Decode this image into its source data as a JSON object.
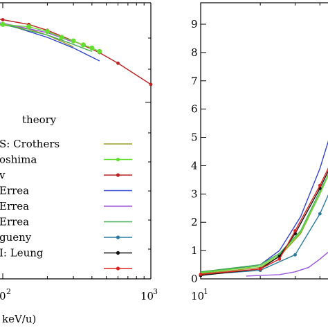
{
  "chart_data": [
    {
      "type": "line",
      "panel": "left",
      "title": "",
      "xlabel": "keV/u)",
      "x_scale": "log",
      "xlim": [
        60,
        1000
      ],
      "ylim": [
        0,
        1
      ],
      "x_ticklabels": [
        "0",
        "2",
        "10",
        "3"
      ],
      "legend": {
        "title": "theory",
        "placement": "center-left",
        "entries": [
          {
            "label": "S: Crothers",
            "color": "#9a9a2a",
            "marker": false
          },
          {
            "label": "oshima",
            "color": "#66dd33",
            "marker": true
          },
          {
            "label": "v",
            "color": "#bb2222",
            "marker": true
          },
          {
            "label": "Errea",
            "color": "#3344cc",
            "marker": false
          },
          {
            "label": "Errea",
            "color": "#9955dd",
            "marker": false
          },
          {
            "label": "Errea",
            "color": "#44aa55",
            "marker": false
          },
          {
            "label": "gueny",
            "color": "#2a7aa0",
            "marker": true
          },
          {
            "label": "I: Leung",
            "color": "#111111",
            "marker": true
          },
          {
            "label": "",
            "color": "#dd2222",
            "marker": true
          }
        ]
      },
      "series": [
        {
          "color": "#9a9a2a",
          "marker": false,
          "x": [
            60,
            80,
            100,
            150,
            200,
            300
          ],
          "y": [
            0.94,
            0.953,
            0.953,
            0.935,
            0.91,
            0.86
          ]
        },
        {
          "color": "#3344cc",
          "marker": false,
          "x": [
            60,
            100,
            200,
            300,
            450
          ],
          "y": [
            0.975,
            0.96,
            0.9,
            0.855,
            0.8
          ]
        },
        {
          "color": "#9955dd",
          "marker": false,
          "x": [
            60,
            100,
            200,
            300
          ],
          "y": [
            0.97,
            0.96,
            0.92,
            0.88
          ]
        },
        {
          "color": "#44aa55",
          "marker": false,
          "x": [
            60,
            100,
            200,
            300,
            400
          ],
          "y": [
            0.965,
            0.955,
            0.91,
            0.87,
            0.84
          ]
        },
        {
          "color": "#bb2222",
          "marker": true,
          "x": [
            70,
            100,
            150,
            200,
            300,
            450,
            600,
            1000
          ],
          "y": [
            0.985,
            0.975,
            0.955,
            0.93,
            0.885,
            0.835,
            0.79,
            0.7
          ]
        },
        {
          "color": "#66dd33",
          "marker": true,
          "x": [
            70,
            100,
            150,
            200,
            250,
            300,
            350,
            400,
            450
          ],
          "y": [
            0.96,
            0.955,
            0.945,
            0.925,
            0.9,
            0.885,
            0.868,
            0.855,
            0.84
          ]
        }
      ]
    },
    {
      "type": "line",
      "panel": "right",
      "title": "",
      "xlabel": "",
      "x_scale": "log",
      "xlim": [
        10,
        50
      ],
      "ylim": [
        0,
        9.5
      ],
      "y_ticks": [
        0,
        1,
        2,
        3,
        4,
        5,
        6,
        7,
        8,
        9
      ],
      "x_ticklabels": [
        "10",
        "1"
      ],
      "series": [
        {
          "color": "#3344cc",
          "marker": false,
          "x": [
            10,
            20,
            25,
            32,
            40,
            50
          ],
          "y": [
            0.2,
            0.5,
            1.0,
            2.2,
            3.9,
            6.1
          ]
        },
        {
          "color": "#9955dd",
          "marker": false,
          "x": [
            17,
            25,
            30,
            35,
            40,
            45,
            50
          ],
          "y": [
            0.1,
            0.15,
            0.25,
            0.4,
            0.7,
            1.0,
            1.45
          ]
        },
        {
          "color": "#9a9a2a",
          "marker": false,
          "x": [
            10,
            20,
            25,
            32,
            40,
            50
          ],
          "y": [
            0.18,
            0.4,
            0.8,
            1.6,
            3.0,
            4.6
          ]
        },
        {
          "color": "#44aa55",
          "marker": false,
          "x": [
            10,
            20,
            25,
            32,
            40,
            50
          ],
          "y": [
            0.25,
            0.5,
            0.9,
            1.7,
            3.1,
            4.4
          ]
        },
        {
          "color": "#66dd33",
          "marker": false,
          "x": [
            10,
            20,
            25,
            32,
            40,
            50
          ],
          "y": [
            0.22,
            0.45,
            0.85,
            1.65,
            3.0,
            4.5
          ]
        },
        {
          "color": "#2a7aa0",
          "marker": true,
          "x": [
            10,
            20,
            30,
            40,
            45,
            50
          ],
          "y": [
            0.15,
            0.3,
            0.85,
            2.3,
            3.1,
            4.5
          ]
        },
        {
          "color": "#111111",
          "marker": true,
          "x": [
            10,
            20,
            25,
            30,
            40,
            50
          ],
          "y": [
            0.12,
            0.35,
            0.8,
            1.6,
            3.2,
            4.6
          ]
        },
        {
          "color": "#dd2222",
          "marker": true,
          "x": [
            10,
            20,
            25,
            30,
            40,
            50
          ],
          "y": [
            0.16,
            0.35,
            0.7,
            1.7,
            3.3,
            4.7
          ]
        }
      ]
    }
  ]
}
